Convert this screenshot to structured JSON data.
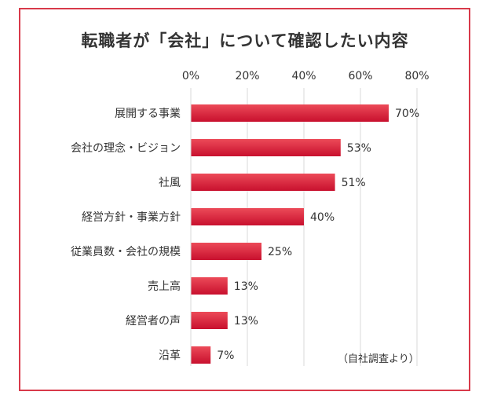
{
  "colors": {
    "border": "#d83a4a",
    "bar_top": "#ec4a58",
    "bar_bottom": "#c8102e",
    "grid": "#d9d9d9",
    "text": "#333333"
  },
  "chart_data": {
    "type": "bar",
    "orientation": "horizontal",
    "title": "転職者が「会社」について確認したい内容",
    "categories": [
      "展開する事業",
      "会社の理念・ビジョン",
      "社風",
      "経営方針・事業方針",
      "従業員数・会社の規模",
      "売上高",
      "経営者の声",
      "沿革"
    ],
    "values": [
      70,
      53,
      51,
      40,
      25,
      13,
      13,
      7
    ],
    "value_labels": [
      "70%",
      "53%",
      "51%",
      "40%",
      "25%",
      "13%",
      "13%",
      "7%"
    ],
    "x_ticks": [
      "0%",
      "20%",
      "40%",
      "60%",
      "80%"
    ],
    "xlim": [
      0,
      80
    ],
    "grid": true,
    "note": "（自社調査より）"
  }
}
